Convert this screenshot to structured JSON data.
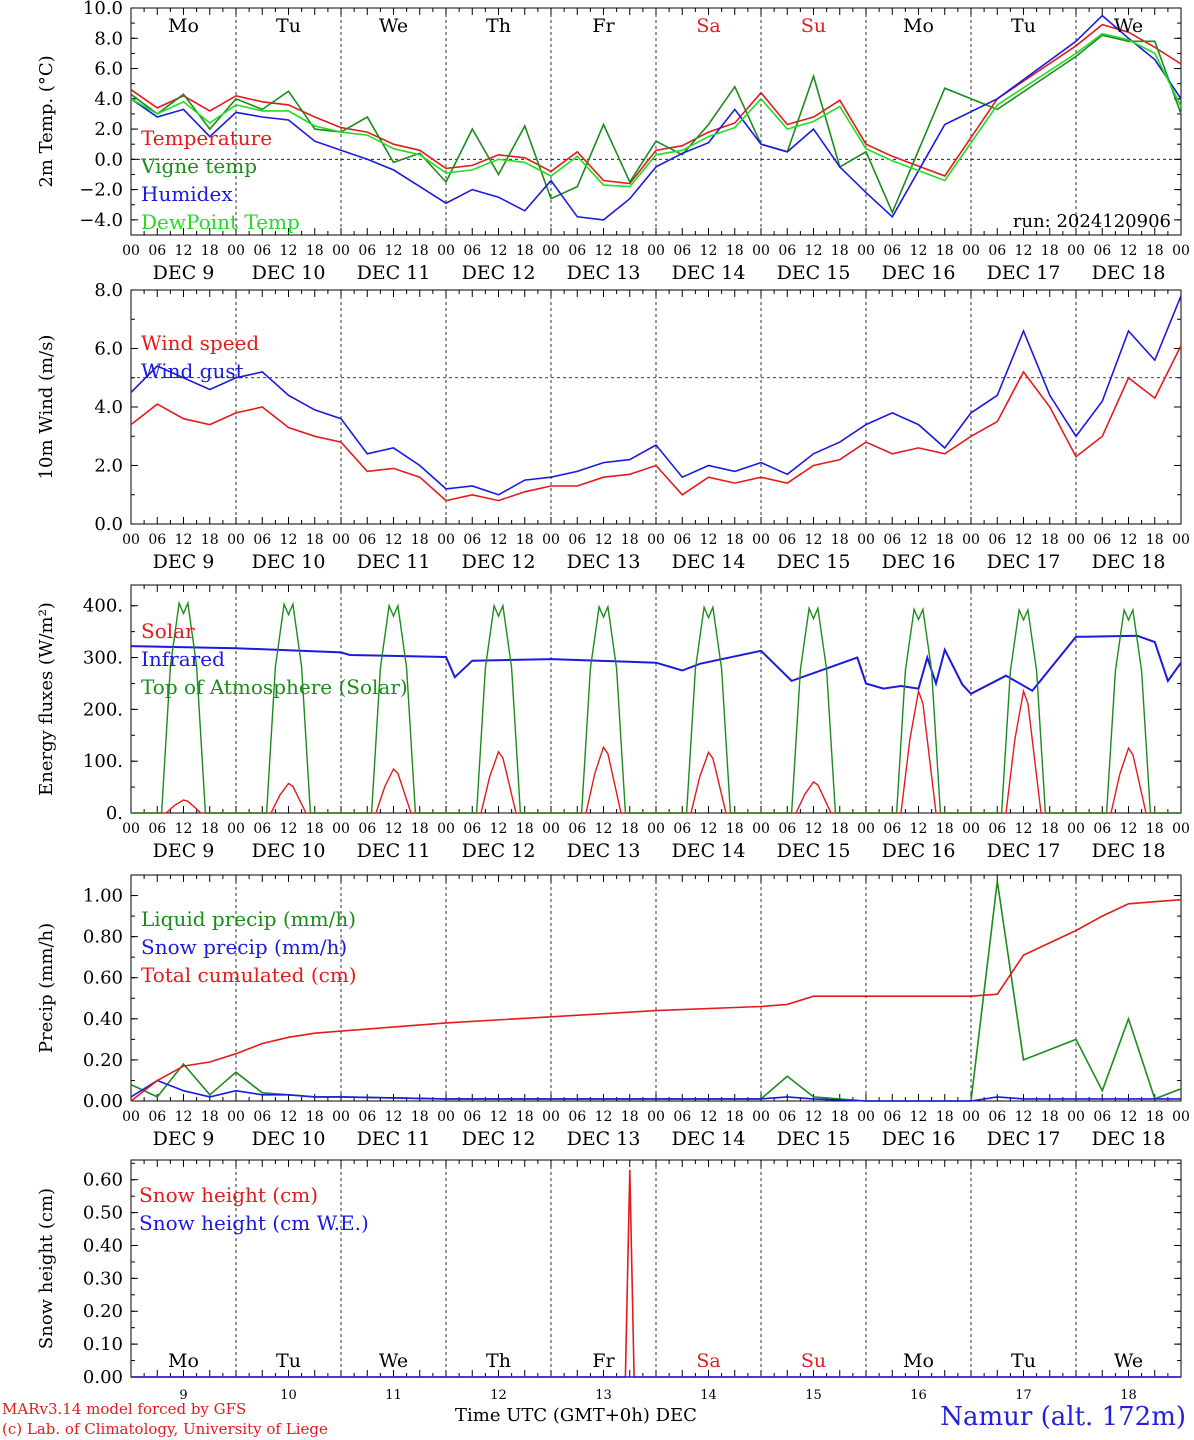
{
  "chart_data": [
    {
      "type": "line",
      "ylabel": "2m Temp. (°C)",
      "ylim": [
        -5,
        10
      ],
      "yticks": [
        "10.0",
        "8.0",
        "6.0",
        "4.0",
        "2.0",
        "0.0",
        "−2.0",
        "−4.0"
      ],
      "ytick_values": [
        10,
        8,
        6,
        4,
        2,
        0,
        -2,
        -4
      ],
      "ref_line": 0,
      "weekdays": [
        "Mo",
        "Tu",
        "We",
        "Th",
        "Fr",
        "Sa",
        "Su",
        "Mo",
        "Tu",
        "We"
      ],
      "run_label": "run: 2024120906",
      "x_hours": [
        0,
        6,
        12,
        18,
        24,
        30,
        36,
        42,
        48,
        54,
        60,
        66,
        72,
        78,
        84,
        90,
        96,
        102,
        108,
        114,
        120,
        126,
        132,
        138,
        144,
        150,
        156,
        162,
        168,
        174,
        180,
        186,
        192,
        198,
        204,
        210,
        216,
        222,
        228,
        234,
        240
      ],
      "series": [
        {
          "name": "Temperature",
          "color": "#e41a1c",
          "values": [
            4.6,
            3.4,
            4.2,
            3.2,
            4.2,
            3.8,
            3.6,
            2.8,
            2.1,
            1.8,
            1.0,
            0.6,
            -0.6,
            -0.4,
            0.3,
            0.1,
            -0.8,
            0.5,
            -1.4,
            -1.6,
            0.6,
            0.9,
            1.8,
            2.4,
            4.4,
            2.3,
            2.8,
            3.9,
            1.0,
            0.2,
            -1.1,
            4.0,
            7.5,
            8.9,
            8.4,
            7.4,
            6.3
          ]
        },
        {
          "name": "Vigne temp",
          "color": "#1c8c1c",
          "values": [
            4.3,
            3.0,
            4.3,
            2.0,
            4.0,
            3.3,
            4.5,
            2.0,
            1.8,
            2.8,
            -0.2,
            0.4,
            -1.5,
            2.0,
            -1.0,
            2.2,
            -2.6,
            -1.8,
            2.3,
            -1.5,
            1.2,
            0.3,
            2.3,
            4.8,
            1.0,
            0.5,
            5.5,
            -0.5,
            0.5,
            -3.5,
            4.7,
            3.3,
            6.8,
            8.2,
            7.8,
            7.8,
            3.0
          ]
        },
        {
          "name": "Humidex",
          "color": "#1a1ae0",
          "values": [
            4.0,
            2.8,
            3.3,
            1.5,
            3.1,
            2.8,
            2.6,
            1.2,
            0.6,
            0.0,
            -0.7,
            -1.8,
            -2.9,
            -2.0,
            -2.5,
            -3.4,
            -1.4,
            -3.8,
            -4.0,
            -2.6,
            -0.5,
            0.4,
            1.1,
            3.3,
            1.0,
            0.5,
            2.0,
            -0.5,
            -2.2,
            -3.8,
            2.3,
            4.0,
            7.8,
            9.5,
            8.0,
            6.6,
            4.0
          ]
        },
        {
          "name": "DewPoint Temp",
          "color": "#22dd22",
          "values": [
            4.0,
            3.0,
            3.8,
            2.4,
            3.6,
            3.2,
            3.2,
            2.2,
            1.8,
            1.6,
            0.7,
            0.3,
            -0.9,
            -0.7,
            0.0,
            -0.2,
            -1.1,
            0.2,
            -1.7,
            -1.8,
            0.3,
            0.6,
            1.5,
            2.1,
            4.0,
            2.0,
            2.5,
            3.5,
            0.7,
            -0.1,
            -1.4,
            3.6,
            7.0,
            8.3,
            7.9,
            7.0,
            3.5
          ]
        }
      ],
      "series_x": [
        0,
        6,
        12,
        18,
        24,
        30,
        36,
        42,
        48,
        54,
        60,
        66,
        72,
        78,
        84,
        90,
        96,
        102,
        108,
        114,
        120,
        126,
        132,
        138,
        144,
        150,
        156,
        162,
        168,
        174,
        186,
        198,
        216,
        222,
        228,
        234,
        240
      ]
    },
    {
      "type": "line",
      "ylabel": "10m Wind (m/s)",
      "ylim": [
        0,
        8
      ],
      "yticks": [
        "8.0",
        "6.0",
        "4.0",
        "2.0",
        "0.0"
      ],
      "ytick_values": [
        8,
        6,
        4,
        2,
        0
      ],
      "ref_line": 5,
      "series_x": [
        0,
        6,
        12,
        18,
        24,
        30,
        36,
        42,
        48,
        54,
        60,
        66,
        72,
        78,
        84,
        90,
        96,
        102,
        108,
        114,
        120,
        126,
        132,
        138,
        144,
        150,
        156,
        162,
        168,
        174,
        180,
        186,
        192,
        198,
        204,
        210,
        216,
        222,
        228,
        234,
        240
      ],
      "series": [
        {
          "name": "Wind speed",
          "color": "#e41a1c",
          "values": [
            3.4,
            4.1,
            3.6,
            3.4,
            3.8,
            4.0,
            3.3,
            3.0,
            2.8,
            1.8,
            1.9,
            1.6,
            0.8,
            1.0,
            0.8,
            1.1,
            1.3,
            1.3,
            1.6,
            1.7,
            2.0,
            1.0,
            1.6,
            1.4,
            1.6,
            1.4,
            2.0,
            2.2,
            2.8,
            2.4,
            2.6,
            2.4,
            3.0,
            3.5,
            5.2,
            4.0,
            2.3,
            3.0,
            5.0,
            4.3,
            6.1
          ]
        },
        {
          "name": "Wind gust",
          "color": "#1a1ae0",
          "values": [
            4.5,
            5.4,
            5.0,
            4.6,
            5.0,
            5.2,
            4.4,
            3.9,
            3.6,
            2.4,
            2.6,
            2.0,
            1.2,
            1.3,
            1.0,
            1.5,
            1.6,
            1.8,
            2.1,
            2.2,
            2.7,
            1.6,
            2.0,
            1.8,
            2.1,
            1.7,
            2.4,
            2.8,
            3.4,
            3.8,
            3.4,
            2.6,
            3.8,
            4.4,
            6.6,
            4.4,
            3.0,
            4.2,
            6.6,
            5.6,
            7.8
          ]
        }
      ]
    },
    {
      "type": "line",
      "ylabel": "Energy fluxes (W/m²)",
      "ylim": [
        0,
        440
      ],
      "yticks": [
        "400.",
        "300.",
        "200.",
        "100.",
        "0."
      ],
      "ytick_values": [
        400,
        300,
        200,
        100,
        0
      ],
      "series_x": [
        0,
        24,
        48,
        72,
        96,
        120,
        144,
        168,
        192,
        216,
        240
      ],
      "series": [
        {
          "name": "Solar",
          "color": "#e41a1c",
          "peaks": [
            25,
            57,
            85,
            118,
            127,
            117,
            60,
            235,
            235,
            125
          ]
        },
        {
          "name": "Infrared",
          "color": "#1a1ae0",
          "values": [
            322,
            318,
            310,
            301,
            297,
            290,
            313,
            250,
            230,
            340,
            290
          ]
        },
        {
          "name": "Top of Atmosphere (Solar)",
          "color": "#1c8c1c",
          "peaks": [
            405,
            403,
            400,
            400,
            398,
            397,
            395,
            393,
            392,
            392
          ]
        }
      ]
    },
    {
      "type": "line",
      "ylabel": "Precip (mm/h)",
      "ylim": [
        0,
        1.1
      ],
      "yticks": [
        "1.00",
        "0.80",
        "0.60",
        "0.40",
        "0.20",
        "0.00"
      ],
      "ytick_values": [
        1.0,
        0.8,
        0.6,
        0.4,
        0.2,
        0
      ],
      "series_x": [
        0,
        6,
        12,
        18,
        24,
        30,
        36,
        42,
        48,
        72,
        96,
        120,
        144,
        150,
        156,
        168,
        180,
        186,
        192,
        198,
        204,
        216,
        222,
        228,
        234,
        240
      ],
      "series": [
        {
          "name": "Liquid precip (mm/h)",
          "color": "#1c8c1c",
          "values": [
            0.08,
            0.02,
            0.18,
            0.03,
            0.14,
            0.04,
            0.03,
            0.02,
            0.02,
            0.01,
            0.01,
            0.01,
            0.01,
            0.12,
            0.02,
            0.0,
            0.0,
            0.0,
            0.0,
            1.07,
            0.2,
            0.3,
            0.05,
            0.4,
            0.01,
            0.06
          ]
        },
        {
          "name": "Snow precip (mm/h)",
          "color": "#1a1ae0",
          "values": [
            0.02,
            0.1,
            0.05,
            0.02,
            0.05,
            0.03,
            0.03,
            0.02,
            0.02,
            0.01,
            0.01,
            0.01,
            0.01,
            0.02,
            0.01,
            0.0,
            0.0,
            0.0,
            0.0,
            0.02,
            0.01,
            0.01,
            0.01,
            0.01,
            0.01,
            0.01
          ]
        },
        {
          "name": "Total cumulated (cm)",
          "color": "#e41a1c",
          "values": [
            0.0,
            0.1,
            0.17,
            0.19,
            0.23,
            0.28,
            0.31,
            0.33,
            0.34,
            0.38,
            0.41,
            0.44,
            0.46,
            0.47,
            0.51,
            0.51,
            0.51,
            0.51,
            0.51,
            0.52,
            0.71,
            0.83,
            0.9,
            0.96,
            0.97,
            0.98
          ]
        }
      ]
    },
    {
      "type": "line",
      "ylabel": "Snow height (cm)",
      "ylim": [
        0,
        0.66
      ],
      "yticks": [
        "0.60",
        "0.50",
        "0.40",
        "0.30",
        "0.20",
        "0.10",
        "0.00"
      ],
      "ytick_values": [
        0.6,
        0.5,
        0.4,
        0.3,
        0.2,
        0.1,
        0
      ],
      "series_x": [
        0,
        113,
        114,
        115,
        240
      ],
      "weekdays": [
        "Mo",
        "Tu",
        "We",
        "Th",
        "Fr",
        "Sa",
        "Su",
        "Mo",
        "Tu",
        "We"
      ],
      "day_numbers": [
        "9",
        "10",
        "11",
        "12",
        "13",
        "14",
        "15",
        "16",
        "17",
        "18"
      ],
      "series": [
        {
          "name": "Snow height (cm)",
          "color": "#e41a1c",
          "values": [
            0,
            0,
            0.63,
            0,
            0
          ]
        },
        {
          "name": "Snow height (cm W.E.)",
          "color": "#1a1ae0",
          "values": [
            0,
            0,
            0,
            0,
            0
          ]
        }
      ]
    }
  ],
  "x_axis": {
    "hour_labels": [
      "00",
      "06",
      "12",
      "18"
    ],
    "date_labels": [
      "DEC  9",
      "DEC 10",
      "DEC 11",
      "DEC 12",
      "DEC 13",
      "DEC 14",
      "DEC 15",
      "DEC 16",
      "DEC 17",
      "DEC 18"
    ],
    "weekend_color": "#e41a1c"
  },
  "footer": {
    "credit_line1": "MARv3.14 model forced by GFS",
    "credit_line2": "(c) Lab. of Climatology, University of Liege",
    "time_label": "Time UTC (GMT+0h) DEC",
    "station": "Namur (alt. 172m)"
  }
}
